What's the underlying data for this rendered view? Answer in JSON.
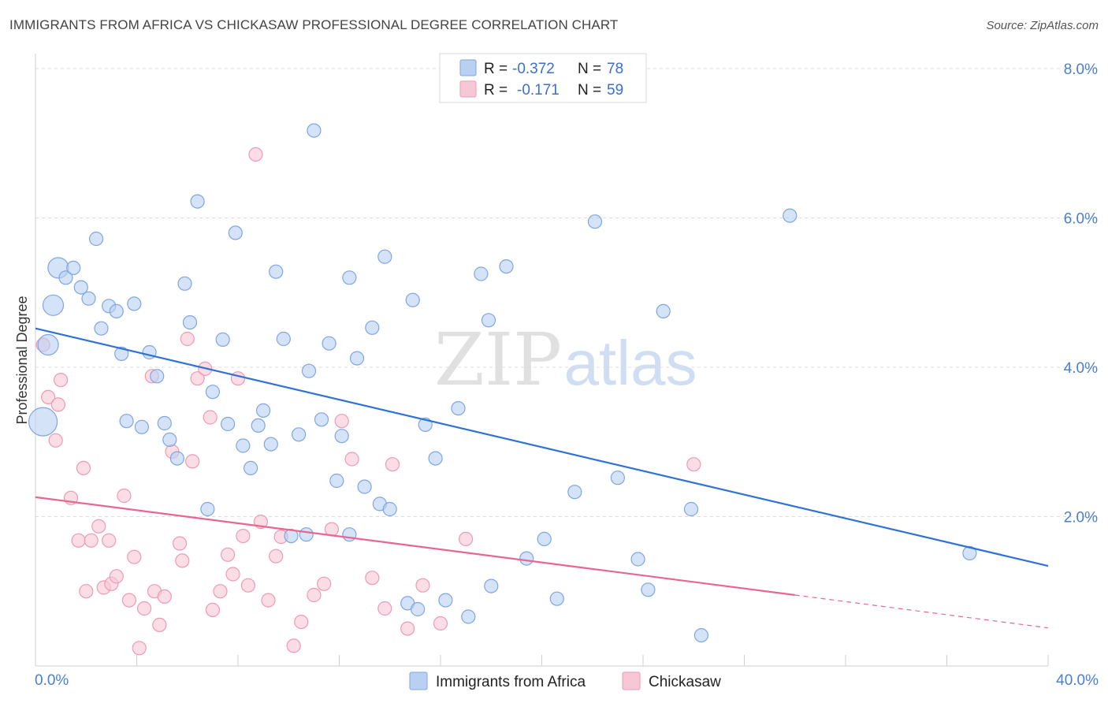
{
  "title": "IMMIGRANTS FROM AFRICA VS CHICKASAW PROFESSIONAL DEGREE CORRELATION CHART",
  "source": "Source: ZipAtlas.com",
  "watermark": {
    "zip": "ZIP",
    "atlas": "atlas"
  },
  "colors": {
    "blue_fill": "#b9d0f3",
    "blue_stroke": "#7fa6e0",
    "blue_line": "#2f72d6",
    "pink_fill": "#f8c7d6",
    "pink_stroke": "#ee9ab5",
    "pink_line": "#e8668f",
    "tick_text": "#4a7fcf"
  },
  "legend": {
    "rows": [
      {
        "r_label": "R =",
        "r_value": "-0.372",
        "n_label": "N =",
        "n_value": "78"
      },
      {
        "r_label": "R =",
        "r_value": "-0.171",
        "n_label": "N =",
        "n_value": "59"
      }
    ]
  },
  "chart_data": {
    "type": "scatter",
    "xlabel": "",
    "ylabel": "Professional Degree",
    "xlim": [
      0,
      40
    ],
    "ylim": [
      0,
      8.2
    ],
    "x_tick_labels": [
      "0.0%",
      "40.0%"
    ],
    "y_ticks": [
      2,
      4,
      6,
      8
    ],
    "y_tick_labels": [
      "2.0%",
      "4.0%",
      "6.0%",
      "8.0%"
    ],
    "grid": true,
    "series": [
      {
        "name": "Immigrants from Africa",
        "color": "blue",
        "trend": {
          "x0": 0.0,
          "y0": 4.52,
          "x1": 40.0,
          "y1": 1.34
        },
        "points": [
          [
            0.3,
            3.27,
            3
          ],
          [
            0.5,
            4.3,
            2
          ],
          [
            0.7,
            4.83,
            2
          ],
          [
            0.9,
            5.33,
            2
          ],
          [
            1.2,
            5.2,
            1
          ],
          [
            1.5,
            5.33,
            1
          ],
          [
            1.8,
            5.07,
            1
          ],
          [
            2.1,
            4.92,
            1
          ],
          [
            2.4,
            5.72,
            1
          ],
          [
            2.6,
            4.52,
            1
          ],
          [
            2.9,
            4.82,
            1
          ],
          [
            3.2,
            4.75,
            1
          ],
          [
            3.4,
            4.18,
            1
          ],
          [
            3.6,
            3.28,
            1
          ],
          [
            3.9,
            4.85,
            1
          ],
          [
            4.2,
            3.2,
            1
          ],
          [
            4.5,
            4.2,
            1
          ],
          [
            4.8,
            3.88,
            1
          ],
          [
            5.1,
            3.25,
            1
          ],
          [
            5.3,
            3.03,
            1
          ],
          [
            5.6,
            2.78,
            1
          ],
          [
            5.9,
            5.12,
            1
          ],
          [
            6.1,
            4.6,
            1
          ],
          [
            6.4,
            6.22,
            1
          ],
          [
            6.8,
            2.1,
            1
          ],
          [
            7.0,
            3.67,
            1
          ],
          [
            7.4,
            4.37,
            1
          ],
          [
            7.6,
            3.24,
            1
          ],
          [
            7.9,
            5.8,
            1
          ],
          [
            8.2,
            2.95,
            1
          ],
          [
            8.5,
            2.65,
            1
          ],
          [
            8.8,
            3.22,
            1
          ],
          [
            9.0,
            3.42,
            1
          ],
          [
            9.3,
            2.97,
            1
          ],
          [
            9.5,
            5.28,
            1
          ],
          [
            9.8,
            4.38,
            1
          ],
          [
            10.1,
            1.74,
            1
          ],
          [
            10.4,
            3.1,
            1
          ],
          [
            10.7,
            1.76,
            1
          ],
          [
            10.8,
            3.95,
            1
          ],
          [
            11.0,
            7.17,
            1
          ],
          [
            11.3,
            3.3,
            1
          ],
          [
            11.6,
            4.32,
            1
          ],
          [
            11.9,
            2.48,
            1
          ],
          [
            12.1,
            3.08,
            1
          ],
          [
            12.4,
            5.2,
            1
          ],
          [
            12.7,
            4.12,
            1
          ],
          [
            13.0,
            2.4,
            1
          ],
          [
            13.3,
            4.53,
            1
          ],
          [
            13.6,
            2.17,
            1
          ],
          [
            13.8,
            5.48,
            1
          ],
          [
            14.0,
            2.1,
            1
          ],
          [
            14.7,
            0.84,
            1
          ],
          [
            14.9,
            4.9,
            1
          ],
          [
            15.4,
            3.23,
            1
          ],
          [
            15.8,
            2.78,
            1
          ],
          [
            16.2,
            0.88,
            1
          ],
          [
            16.7,
            3.45,
            1
          ],
          [
            17.1,
            0.66,
            1
          ],
          [
            17.6,
            5.25,
            1
          ],
          [
            17.9,
            4.63,
            1
          ],
          [
            18.0,
            1.07,
            1
          ],
          [
            18.6,
            5.35,
            1
          ],
          [
            19.4,
            1.44,
            1
          ],
          [
            20.1,
            1.7,
            1
          ],
          [
            20.6,
            0.9,
            1
          ],
          [
            21.3,
            2.33,
            1
          ],
          [
            22.1,
            5.95,
            1
          ],
          [
            23.0,
            2.52,
            1
          ],
          [
            23.8,
            1.43,
            1
          ],
          [
            24.2,
            1.02,
            1
          ],
          [
            24.8,
            4.75,
            1
          ],
          [
            25.9,
            2.1,
            1
          ],
          [
            26.3,
            0.41,
            1
          ],
          [
            29.8,
            6.03,
            1
          ],
          [
            36.9,
            1.51,
            1
          ],
          [
            12.4,
            1.76,
            1
          ],
          [
            15.1,
            0.76,
            1
          ]
        ]
      },
      {
        "name": "Chickasaw",
        "color": "pink",
        "trend": {
          "x0": 0.0,
          "y0": 2.26,
          "x1": 30.0,
          "y1": 0.95,
          "dash_to_x": 40.0,
          "dash_to_y": 0.51
        },
        "points": [
          [
            0.3,
            4.3,
            1
          ],
          [
            0.5,
            3.6,
            1
          ],
          [
            0.8,
            3.02,
            1
          ],
          [
            0.9,
            3.5,
            1
          ],
          [
            1.0,
            3.83,
            1
          ],
          [
            1.4,
            2.25,
            1
          ],
          [
            1.7,
            1.68,
            1
          ],
          [
            1.9,
            2.65,
            1
          ],
          [
            2.0,
            1.0,
            1
          ],
          [
            2.2,
            1.68,
            1
          ],
          [
            2.5,
            1.87,
            1
          ],
          [
            2.7,
            1.05,
            1
          ],
          [
            2.9,
            1.68,
            1
          ],
          [
            3.0,
            1.1,
            1
          ],
          [
            3.2,
            1.2,
            1
          ],
          [
            3.5,
            2.28,
            1
          ],
          [
            3.7,
            0.88,
            1
          ],
          [
            3.9,
            1.46,
            1
          ],
          [
            4.1,
            0.24,
            1
          ],
          [
            4.3,
            0.77,
            1
          ],
          [
            4.6,
            3.88,
            1
          ],
          [
            4.7,
            1.0,
            1
          ],
          [
            4.9,
            0.55,
            1
          ],
          [
            5.1,
            0.93,
            1
          ],
          [
            5.4,
            2.87,
            1
          ],
          [
            5.7,
            1.64,
            1
          ],
          [
            5.8,
            1.41,
            1
          ],
          [
            6.0,
            4.38,
            1
          ],
          [
            6.2,
            2.74,
            1
          ],
          [
            6.4,
            3.85,
            1
          ],
          [
            6.7,
            3.98,
            1
          ],
          [
            6.9,
            3.33,
            1
          ],
          [
            7.0,
            0.75,
            1
          ],
          [
            7.3,
            1.0,
            1
          ],
          [
            7.6,
            1.49,
            1
          ],
          [
            7.8,
            1.23,
            1
          ],
          [
            8.0,
            3.85,
            1
          ],
          [
            8.2,
            1.74,
            1
          ],
          [
            8.4,
            1.08,
            1
          ],
          [
            8.7,
            6.85,
            1
          ],
          [
            8.9,
            1.93,
            1
          ],
          [
            9.2,
            0.88,
            1
          ],
          [
            9.5,
            1.47,
            1
          ],
          [
            9.7,
            1.73,
            1
          ],
          [
            10.2,
            0.27,
            1
          ],
          [
            10.5,
            0.59,
            1
          ],
          [
            11.0,
            0.95,
            1
          ],
          [
            11.4,
            1.1,
            1
          ],
          [
            11.7,
            1.83,
            1
          ],
          [
            12.1,
            3.28,
            1
          ],
          [
            12.5,
            2.77,
            1
          ],
          [
            13.3,
            1.18,
            1
          ],
          [
            13.8,
            0.77,
            1
          ],
          [
            14.1,
            2.7,
            1
          ],
          [
            14.7,
            0.5,
            1
          ],
          [
            15.3,
            1.08,
            1
          ],
          [
            16.0,
            0.57,
            1
          ],
          [
            17.0,
            1.7,
            1
          ],
          [
            26.0,
            2.7,
            1
          ]
        ]
      }
    ]
  },
  "bottom_legend": {
    "items": [
      "Immigrants from Africa",
      "Chickasaw"
    ]
  }
}
